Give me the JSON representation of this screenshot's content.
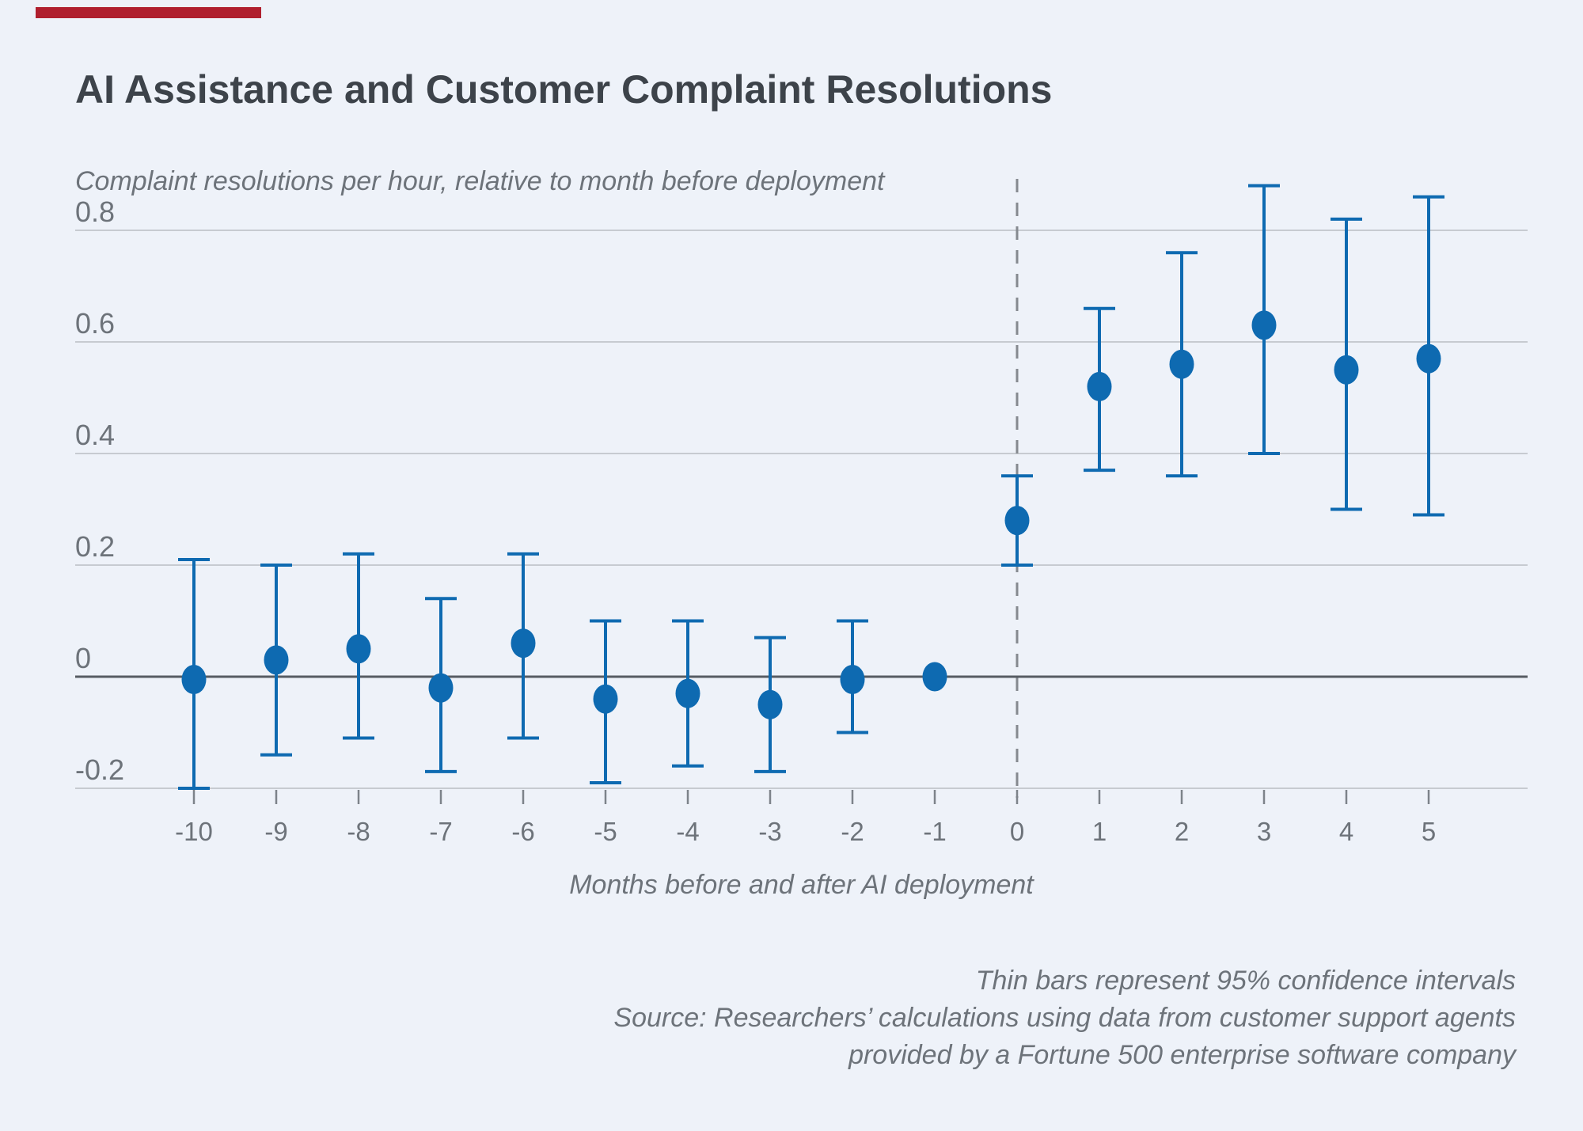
{
  "page": {
    "background_color": "#eef2f9",
    "accent_color": "#b01f2e"
  },
  "chart_data": {
    "type": "scatter",
    "variant": "event-study-error-bars",
    "title": "AI Assistance and Customer Complaint Resolutions",
    "ylabel": "Complaint resolutions per hour, relative to month before deployment",
    "xlabel": "Months before and after AI deployment",
    "marker_color": "#0e6ab1",
    "grid": true,
    "ylim": [
      -0.25,
      0.9
    ],
    "xlim": [
      -11,
      6
    ],
    "reference_line_x": 0,
    "y_ticks": [
      {
        "value": 0.8,
        "label": "0.8"
      },
      {
        "value": 0.6,
        "label": "0.6"
      },
      {
        "value": 0.4,
        "label": "0.4"
      },
      {
        "value": 0.2,
        "label": "0.2"
      },
      {
        "value": 0,
        "label": "0"
      },
      {
        "value": -0.2,
        "label": "-0.2"
      }
    ],
    "x_tick_labels": [
      "-10",
      "-9",
      "-8",
      "-7",
      "-6",
      "-5",
      "-4",
      "-3",
      "-2",
      "-1",
      "0",
      "1",
      "2",
      "3",
      "4",
      "5"
    ],
    "points": [
      {
        "month": -10,
        "estimate": -0.005,
        "ci_low": -0.2,
        "ci_high": 0.21
      },
      {
        "month": -9,
        "estimate": 0.03,
        "ci_low": -0.14,
        "ci_high": 0.2
      },
      {
        "month": -8,
        "estimate": 0.05,
        "ci_low": -0.11,
        "ci_high": 0.22
      },
      {
        "month": -7,
        "estimate": -0.02,
        "ci_low": -0.17,
        "ci_high": 0.14
      },
      {
        "month": -6,
        "estimate": 0.06,
        "ci_low": -0.11,
        "ci_high": 0.22
      },
      {
        "month": -5,
        "estimate": -0.04,
        "ci_low": -0.19,
        "ci_high": 0.1
      },
      {
        "month": -4,
        "estimate": -0.03,
        "ci_low": -0.16,
        "ci_high": 0.1
      },
      {
        "month": -3,
        "estimate": -0.05,
        "ci_low": -0.17,
        "ci_high": 0.07
      },
      {
        "month": -2,
        "estimate": -0.005,
        "ci_low": -0.1,
        "ci_high": 0.1
      },
      {
        "month": -1,
        "estimate": 0.0,
        "ci_low": null,
        "ci_high": null
      },
      {
        "month": 0,
        "estimate": 0.28,
        "ci_low": 0.2,
        "ci_high": 0.36
      },
      {
        "month": 1,
        "estimate": 0.52,
        "ci_low": 0.37,
        "ci_high": 0.66
      },
      {
        "month": 2,
        "estimate": 0.56,
        "ci_low": 0.36,
        "ci_high": 0.76
      },
      {
        "month": 3,
        "estimate": 0.63,
        "ci_low": 0.4,
        "ci_high": 0.88
      },
      {
        "month": 4,
        "estimate": 0.55,
        "ci_low": 0.3,
        "ci_high": 0.82
      },
      {
        "month": 5,
        "estimate": 0.57,
        "ci_low": 0.29,
        "ci_high": 0.86
      }
    ]
  },
  "footer": {
    "note": "Thin bars represent 95% confidence intervals",
    "source_line1": "Source: Researchers’ calculations using data from customer support agents",
    "source_line2": "provided by a Fortune 500 enterprise software company"
  }
}
